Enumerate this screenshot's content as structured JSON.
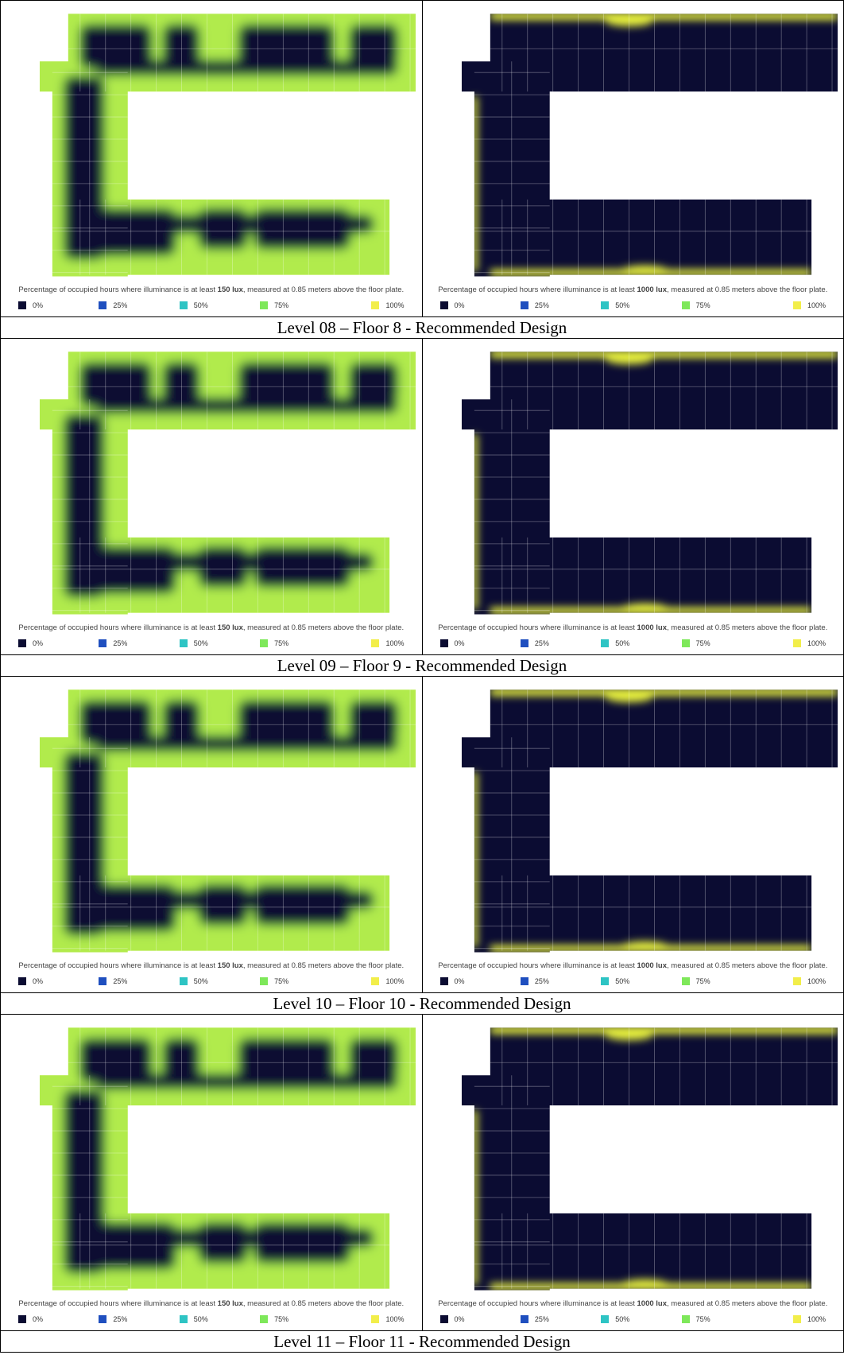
{
  "rows": [
    {
      "caption": "Level 08 – Floor 8 - Recommended Design",
      "panels": [
        {
          "note_before": "Percentage of occupied hours where illuminance is at least ",
          "note_bold": "150 lux",
          "note_after": ", measured at 0.85 meters above the floor plate.",
          "legend": [
            {
              "label": "0%",
              "color": "#0b0c32"
            },
            {
              "label": "25%",
              "color": "#1f4fbf"
            },
            {
              "label": "50%",
              "color": "#2ec4c4"
            },
            {
              "label": "75%",
              "color": "#7ee85a"
            },
            {
              "label": "100%",
              "color": "#f2ee4a"
            }
          ]
        },
        {
          "note_before": "Percentage of occupied hours where illuminance is at least ",
          "note_bold": "1000 lux",
          "note_after": ", measured at 0.85 meters above the floor plate.",
          "legend": [
            {
              "label": "0%",
              "color": "#0b0c32"
            },
            {
              "label": "25%",
              "color": "#1f4fbf"
            },
            {
              "label": "50%",
              "color": "#2ec4c4"
            },
            {
              "label": "75%",
              "color": "#7ee85a"
            },
            {
              "label": "100%",
              "color": "#f2ee4a"
            }
          ]
        }
      ]
    },
    {
      "caption": "Level 09 – Floor 9 - Recommended Design",
      "panels": [
        {
          "note_before": "Percentage of occupied hours where illuminance is at least ",
          "note_bold": "150 lux",
          "note_after": ", measured at 0.85 meters above the floor plate.",
          "legend": [
            {
              "label": "0%",
              "color": "#0b0c32"
            },
            {
              "label": "25%",
              "color": "#1f4fbf"
            },
            {
              "label": "50%",
              "color": "#2ec4c4"
            },
            {
              "label": "75%",
              "color": "#7ee85a"
            },
            {
              "label": "100%",
              "color": "#f2ee4a"
            }
          ]
        },
        {
          "note_before": "Percentage of occupied hours where illuminance is at least ",
          "note_bold": "1000 lux",
          "note_after": ", measured at 0.85 meters above the floor plate.",
          "legend": [
            {
              "label": "0%",
              "color": "#0b0c32"
            },
            {
              "label": "25%",
              "color": "#1f4fbf"
            },
            {
              "label": "50%",
              "color": "#2ec4c4"
            },
            {
              "label": "75%",
              "color": "#7ee85a"
            },
            {
              "label": "100%",
              "color": "#f2ee4a"
            }
          ]
        }
      ]
    },
    {
      "caption": "Level 10 – Floor 10 - Recommended Design",
      "panels": [
        {
          "note_before": "Percentage of occupied hours where illuminance is at least ",
          "note_bold": "150 lux",
          "note_after": ", measured at 0.85 meters above the floor plate.",
          "legend": [
            {
              "label": "0%",
              "color": "#0b0c32"
            },
            {
              "label": "25%",
              "color": "#1f4fbf"
            },
            {
              "label": "50%",
              "color": "#2ec4c4"
            },
            {
              "label": "75%",
              "color": "#7ee85a"
            },
            {
              "label": "100%",
              "color": "#f2ee4a"
            }
          ]
        },
        {
          "note_before": "Percentage of occupied hours where illuminance is at least ",
          "note_bold": "1000 lux",
          "note_after": ", measured at 0.85 meters above the floor plate.",
          "legend": [
            {
              "label": "0%",
              "color": "#0b0c32"
            },
            {
              "label": "25%",
              "color": "#1f4fbf"
            },
            {
              "label": "50%",
              "color": "#2ec4c4"
            },
            {
              "label": "75%",
              "color": "#7ee85a"
            },
            {
              "label": "100%",
              "color": "#f2ee4a"
            }
          ]
        }
      ]
    },
    {
      "caption": "Level 11 – Floor 11 - Recommended Design",
      "panels": [
        {
          "note_before": "Percentage of occupied hours where illuminance is at least ",
          "note_bold": "150 lux",
          "note_after": ", measured at 0.85 meters above the floor plate.",
          "legend": [
            {
              "label": "0%",
              "color": "#0b0c32"
            },
            {
              "label": "25%",
              "color": "#1f4fbf"
            },
            {
              "label": "50%",
              "color": "#2ec4c4"
            },
            {
              "label": "75%",
              "color": "#7ee85a"
            },
            {
              "label": "100%",
              "color": "#f2ee4a"
            }
          ]
        },
        {
          "note_before": "Percentage of occupied hours where illuminance is at least ",
          "note_bold": "1000 lux",
          "note_after": ", measured at 0.85 meters above the floor plate.",
          "legend": [
            {
              "label": "0%",
              "color": "#0b0c32"
            },
            {
              "label": "25%",
              "color": "#1f4fbf"
            },
            {
              "label": "50%",
              "color": "#2ec4c4"
            },
            {
              "label": "75%",
              "color": "#7ee85a"
            },
            {
              "label": "100%",
              "color": "#f2ee4a"
            }
          ]
        }
      ]
    }
  ]
}
